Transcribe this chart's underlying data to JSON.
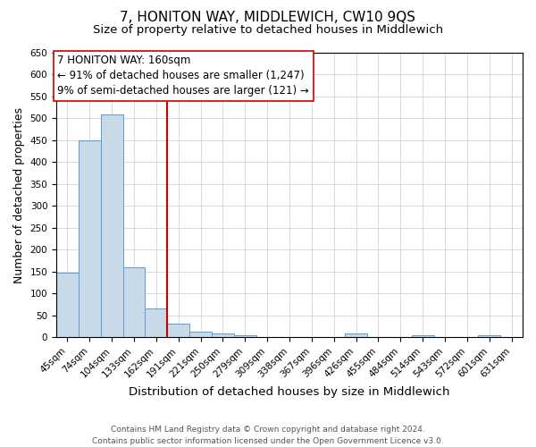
{
  "title": "7, HONITON WAY, MIDDLEWICH, CW10 9QS",
  "subtitle": "Size of property relative to detached houses in Middlewich",
  "xlabel": "Distribution of detached houses by size in Middlewich",
  "ylabel": "Number of detached properties",
  "footer_line1": "Contains HM Land Registry data © Crown copyright and database right 2024.",
  "footer_line2": "Contains public sector information licensed under the Open Government Licence v3.0.",
  "bar_labels": [
    "45sqm",
    "74sqm",
    "104sqm",
    "133sqm",
    "162sqm",
    "191sqm",
    "221sqm",
    "250sqm",
    "279sqm",
    "309sqm",
    "338sqm",
    "367sqm",
    "396sqm",
    "426sqm",
    "455sqm",
    "484sqm",
    "514sqm",
    "543sqm",
    "572sqm",
    "601sqm",
    "631sqm"
  ],
  "bar_values": [
    148,
    450,
    510,
    160,
    65,
    30,
    13,
    8,
    5,
    0,
    0,
    0,
    0,
    8,
    0,
    0,
    5,
    0,
    0,
    5,
    0
  ],
  "bar_color": "#c8d9e8",
  "bar_edge_color": "#5b9bd5",
  "annotation_title": "7 HONITON WAY: 160sqm",
  "annotation_line1": "← 91% of detached houses are smaller (1,247)",
  "annotation_line2": "9% of semi-detached houses are larger (121) →",
  "vline_x_index": 4,
  "vline_color": "#cc0000",
  "ylim": [
    0,
    650
  ],
  "yticks": [
    0,
    50,
    100,
    150,
    200,
    250,
    300,
    350,
    400,
    450,
    500,
    550,
    600,
    650
  ],
  "annotation_box_color": "#ffffff",
  "annotation_box_edge_color": "#cc0000",
  "title_fontsize": 11,
  "subtitle_fontsize": 9.5,
  "xlabel_fontsize": 9.5,
  "ylabel_fontsize": 9,
  "footer_fontsize": 6.5,
  "annotation_fontsize": 8.5,
  "tick_fontsize": 7.5
}
